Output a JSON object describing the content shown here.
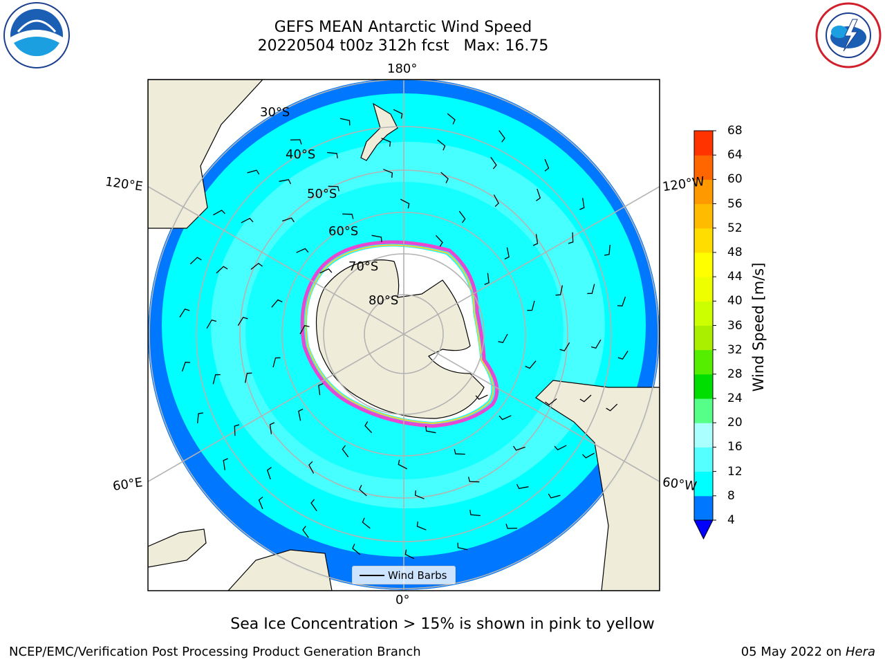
{
  "title": {
    "line1": "GEFS MEAN Antarctic Wind Speed",
    "line2": "20220504 t00z 312h fcst   Max: 16.75"
  },
  "logos": {
    "left": {
      "name": "noaa-logo",
      "text": "NOAA"
    },
    "right": {
      "name": "national-weather-service-logo",
      "text": "NATIONAL WEATHER SERVICE"
    }
  },
  "map": {
    "projection": "south-polar-stereographic",
    "ocean_color": "#00ffff",
    "land_color": "#efedd9",
    "ice_sheet_color": "#ffffff",
    "meridian_labels": {
      "top": "180°",
      "bottom": "0°",
      "upper_left": "120°E",
      "upper_right": "120°W",
      "lower_left": "60°E",
      "lower_right": "60°W"
    },
    "parallel_labels": [
      "30°S",
      "40°S",
      "50°S",
      "60°S",
      "70°S",
      "80°S"
    ]
  },
  "legend": {
    "label": "Wind Barbs"
  },
  "colorbar": {
    "label": "Wind Speed [m/s]",
    "ticks": [
      "4",
      "8",
      "12",
      "16",
      "20",
      "24",
      "28",
      "32",
      "36",
      "40",
      "44",
      "48",
      "52",
      "56",
      "60",
      "64",
      "68"
    ],
    "colors": [
      "#0077ff",
      "#00ffff",
      "#55ffff",
      "#aaffff",
      "#55ff88",
      "#00dd00",
      "#55ee00",
      "#aaee00",
      "#ccff00",
      "#eeff00",
      "#ffff00",
      "#ffdd00",
      "#ffbb00",
      "#ff9900",
      "#ff6600",
      "#ff3300"
    ],
    "under_color": "#0000ff"
  },
  "caption": "Sea Ice Concentration > 15% is shown in pink to yellow",
  "footer": {
    "left": "NCEP/EMC/Verification Post Processing Product Generation Branch",
    "right_date": "05 May 2022 on ",
    "right_machine": "Hera"
  }
}
